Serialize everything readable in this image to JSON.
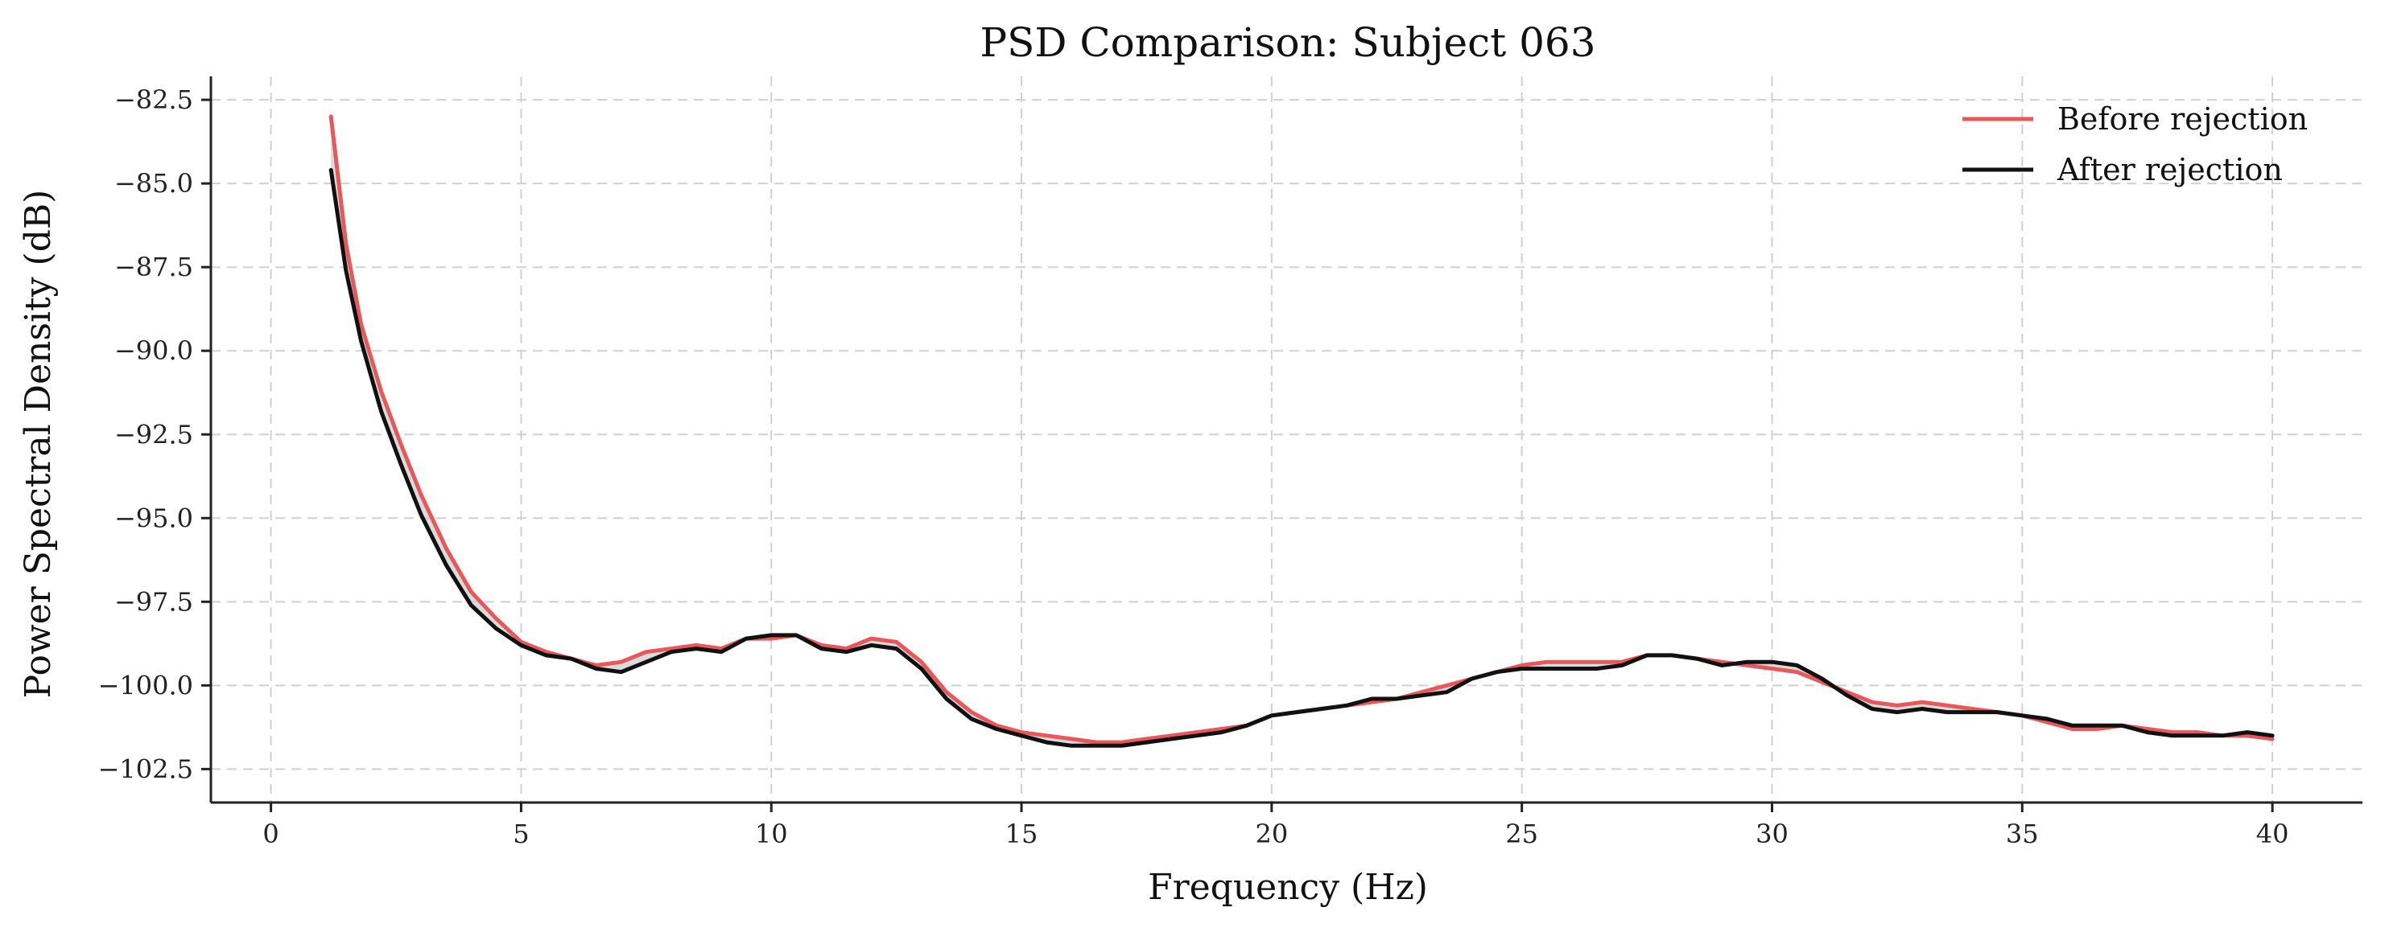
{
  "chart_data": {
    "type": "line",
    "title": "PSD Comparison: Subject 063",
    "xlabel": "Frequency (Hz)",
    "ylabel": "Power Spectral Density (dB)",
    "xlim": [
      -1.2,
      41.8
    ],
    "ylim": [
      -103.5,
      -81.8
    ],
    "xticks": [
      0,
      5,
      10,
      15,
      20,
      25,
      30,
      35,
      40
    ],
    "yticks": [
      -82.5,
      -85.0,
      -87.5,
      -90.0,
      -92.5,
      -95.0,
      -97.5,
      -100.0,
      -102.5
    ],
    "xtick_labels": [
      "0",
      "5",
      "10",
      "15",
      "20",
      "25",
      "30",
      "35",
      "40"
    ],
    "ytick_labels": [
      "−82.5",
      "−85.0",
      "−87.5",
      "−90.0",
      "−92.5",
      "−95.0",
      "−97.5",
      "−100.0",
      "−102.5"
    ],
    "grid": true,
    "legend_position": "top-right",
    "fill_between": {
      "color": "#cccccc"
    },
    "x": [
      1.2,
      1.5,
      1.8,
      2.2,
      2.6,
      3.0,
      3.5,
      4.0,
      4.5,
      5.0,
      5.5,
      6.0,
      6.5,
      7.0,
      7.5,
      8.0,
      8.5,
      9.0,
      9.5,
      10.0,
      10.5,
      11.0,
      11.5,
      12.0,
      12.5,
      13.0,
      13.5,
      14.0,
      14.5,
      15.0,
      15.5,
      16.0,
      16.5,
      17.0,
      17.5,
      18.0,
      18.5,
      19.0,
      19.5,
      20.0,
      20.5,
      21.0,
      21.5,
      22.0,
      22.5,
      23.0,
      23.5,
      24.0,
      24.5,
      25.0,
      25.5,
      26.0,
      26.5,
      27.0,
      27.5,
      28.0,
      28.5,
      29.0,
      29.5,
      30.0,
      30.5,
      31.0,
      31.5,
      32.0,
      32.5,
      33.0,
      33.5,
      34.0,
      34.5,
      35.0,
      35.5,
      36.0,
      36.5,
      37.0,
      37.5,
      38.0,
      38.5,
      39.0,
      39.5,
      40.0
    ],
    "series": [
      {
        "name": "Before rejection",
        "color": "#e8585a",
        "values": [
          -83.0,
          -86.8,
          -89.2,
          -91.2,
          -92.8,
          -94.3,
          -95.9,
          -97.2,
          -98.0,
          -98.7,
          -99.0,
          -99.2,
          -99.4,
          -99.3,
          -99.0,
          -98.9,
          -98.8,
          -98.9,
          -98.6,
          -98.6,
          -98.5,
          -98.8,
          -98.9,
          -98.6,
          -98.7,
          -99.3,
          -100.2,
          -100.8,
          -101.2,
          -101.4,
          -101.5,
          -101.6,
          -101.7,
          -101.7,
          -101.6,
          -101.5,
          -101.4,
          -101.3,
          -101.2,
          -100.9,
          -100.8,
          -100.7,
          -100.6,
          -100.5,
          -100.4,
          -100.2,
          -100.0,
          -99.8,
          -99.6,
          -99.4,
          -99.3,
          -99.3,
          -99.3,
          -99.3,
          -99.1,
          -99.1,
          -99.2,
          -99.3,
          -99.4,
          -99.5,
          -99.6,
          -99.9,
          -100.2,
          -100.5,
          -100.6,
          -100.5,
          -100.6,
          -100.7,
          -100.8,
          -100.9,
          -101.1,
          -101.3,
          -101.3,
          -101.2,
          -101.3,
          -101.4,
          -101.4,
          -101.5,
          -101.5,
          -101.6
        ]
      },
      {
        "name": "After rejection",
        "color": "#111111",
        "values": [
          -84.6,
          -87.6,
          -89.7,
          -91.8,
          -93.4,
          -94.9,
          -96.4,
          -97.6,
          -98.3,
          -98.8,
          -99.1,
          -99.2,
          -99.5,
          -99.6,
          -99.3,
          -99.0,
          -98.9,
          -99.0,
          -98.6,
          -98.5,
          -98.5,
          -98.9,
          -99.0,
          -98.8,
          -98.9,
          -99.5,
          -100.4,
          -101.0,
          -101.3,
          -101.5,
          -101.7,
          -101.8,
          -101.8,
          -101.8,
          -101.7,
          -101.6,
          -101.5,
          -101.4,
          -101.2,
          -100.9,
          -100.8,
          -100.7,
          -100.6,
          -100.4,
          -100.4,
          -100.3,
          -100.2,
          -99.8,
          -99.6,
          -99.5,
          -99.5,
          -99.5,
          -99.5,
          -99.4,
          -99.1,
          -99.1,
          -99.2,
          -99.4,
          -99.3,
          -99.3,
          -99.4,
          -99.8,
          -100.3,
          -100.7,
          -100.8,
          -100.7,
          -100.8,
          -100.8,
          -100.8,
          -100.9,
          -101.0,
          -101.2,
          -101.2,
          -101.2,
          -101.4,
          -101.5,
          -101.5,
          -101.5,
          -101.4,
          -101.5
        ]
      }
    ]
  }
}
